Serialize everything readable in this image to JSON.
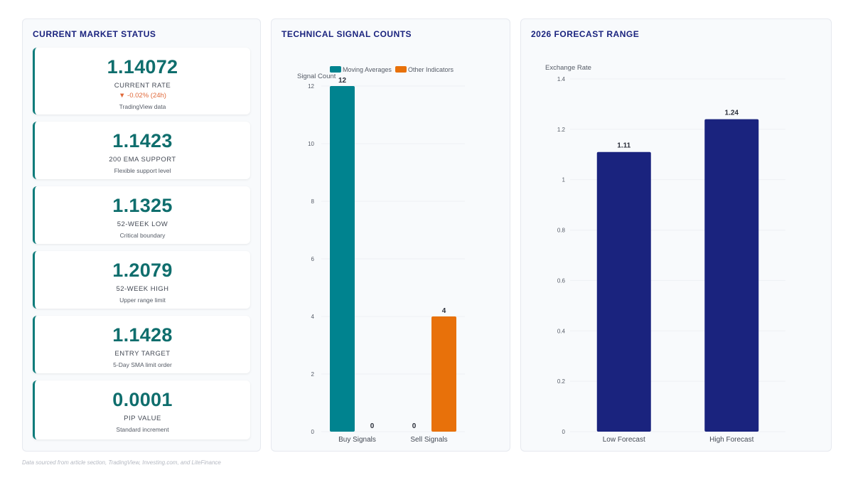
{
  "status_panel": {
    "title": "CURRENT MARKET STATUS",
    "cards": [
      {
        "value": "1.14072",
        "label": "CURRENT RATE",
        "change": "▼ -0.02% (24h)",
        "sub": "TradingView data"
      },
      {
        "value": "1.1423",
        "label": "200 EMA SUPPORT",
        "sub": "Flexible support level"
      },
      {
        "value": "1.1325",
        "label": "52-WEEK LOW",
        "sub": "Critical boundary"
      },
      {
        "value": "1.2079",
        "label": "52-WEEK HIGH",
        "sub": "Upper range limit"
      },
      {
        "value": "1.1428",
        "label": "ENTRY TARGET",
        "sub": "5-Day SMA limit order"
      },
      {
        "value": "0.0001",
        "label": "PIP VALUE",
        "sub": "Standard increment"
      }
    ]
  },
  "signals_panel": {
    "title": "TECHNICAL SIGNAL COUNTS"
  },
  "forecast_panel": {
    "title": "2026 FORECAST RANGE"
  },
  "footnote": "Data sourced from article section, TradingView, Investing.com, and LiteFinance",
  "colors": {
    "moving_averages": "#00838f",
    "other_indicators": "#e8710a",
    "forecast": "#1a237e"
  },
  "chart_data": [
    {
      "type": "bar",
      "title": "TECHNICAL SIGNAL COUNTS",
      "categories": [
        "Buy Signals",
        "Sell Signals"
      ],
      "series": [
        {
          "name": "Moving Averages",
          "values": [
            12,
            0
          ]
        },
        {
          "name": "Other Indicators",
          "values": [
            0,
            4
          ]
        }
      ],
      "xlabel": "",
      "ylabel": "Signal Count",
      "ylim": [
        0,
        12
      ],
      "yticks": [
        0,
        2,
        4,
        6,
        8,
        10,
        12
      ],
      "legend": "top",
      "grid": true
    },
    {
      "type": "bar",
      "title": "2026 FORECAST RANGE",
      "categories": [
        "Low Forecast",
        "High Forecast"
      ],
      "values": [
        1.11,
        1.24
      ],
      "value_labels": [
        "1.11",
        "1.24"
      ],
      "xlabel": "",
      "ylabel": "Exchange Rate",
      "ylim": [
        0,
        1.4
      ],
      "yticks": [
        0,
        0.2,
        0.4,
        0.6,
        0.8,
        1,
        1.2,
        1.4
      ],
      "grid": true
    }
  ]
}
